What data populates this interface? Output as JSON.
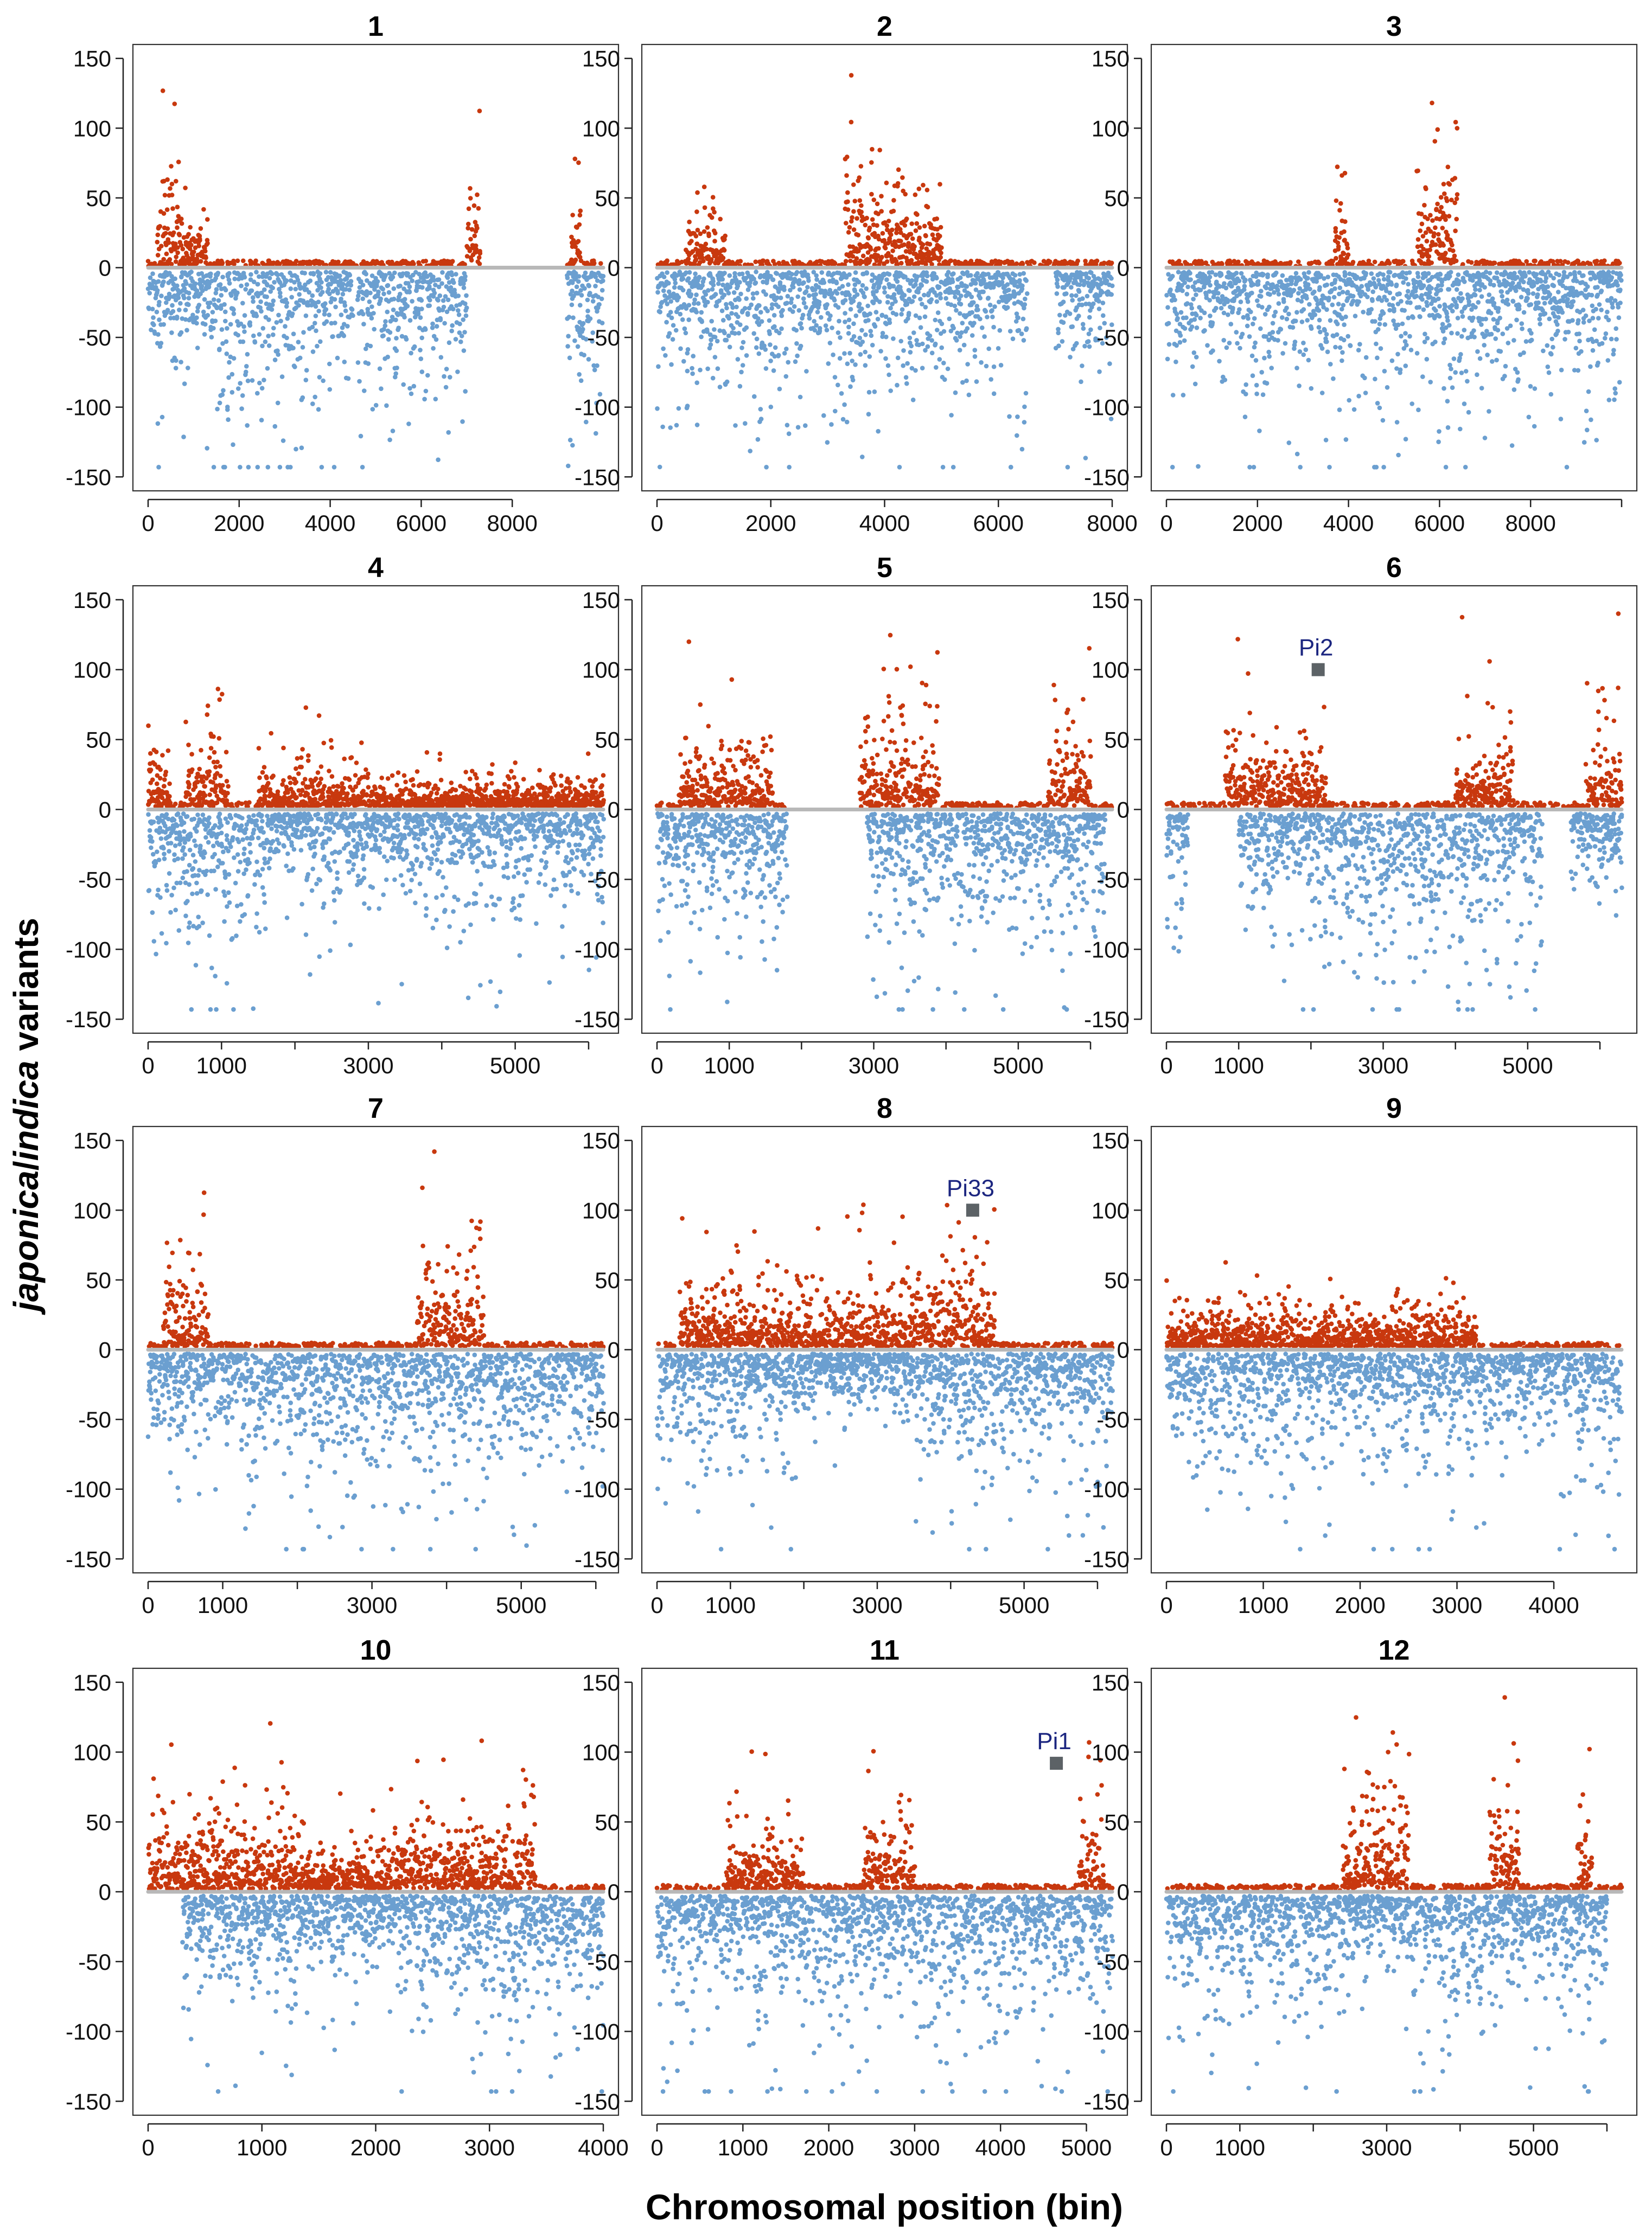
{
  "figure": {
    "ylabel_italic_1": "japonica",
    "ylabel_slash": "/",
    "ylabel_italic_2": "indica",
    "ylabel_rest": " variants",
    "xlabel": "Chromosomal position (bin)"
  },
  "colors": {
    "japonica": "#c8380e",
    "indica": "#6b9fd0",
    "zero_band": "#b8b8b8",
    "marker": "#5c6266",
    "marker_text": "#1c2680",
    "axis": "#222222",
    "frame": "#333333"
  },
  "chart_data": [
    {
      "type": "scatter",
      "title": "1",
      "xlim": [
        0,
        10000
      ],
      "ylim": [
        -160,
        160
      ],
      "xticks": [
        0,
        2000,
        4000,
        6000,
        8000
      ],
      "yticks": [
        150,
        100,
        50,
        0,
        -50,
        -100,
        -150
      ],
      "extra_minor_xticks": [],
      "pos_clusters": [
        [
          200,
          700,
          60
        ],
        [
          700,
          1300,
          20
        ],
        [
          7000,
          7300,
          50
        ],
        [
          9300,
          9500,
          40
        ]
      ],
      "neg_clusters": [
        [
          0,
          1400,
          40
        ],
        [
          1400,
          3900,
          65
        ],
        [
          3900,
          4500,
          45
        ],
        [
          4600,
          4900,
          55
        ],
        [
          4900,
          7000,
          50
        ],
        [
          9200,
          10000,
          45
        ]
      ],
      "gaps": [
        [
          7300,
          9200
        ]
      ],
      "annotation": null
    },
    {
      "type": "scatter",
      "title": "2",
      "xlim": [
        0,
        8000
      ],
      "ylim": [
        -160,
        160
      ],
      "xticks": [
        0,
        2000,
        4000,
        6000,
        8000
      ],
      "yticks": [
        150,
        100,
        50,
        0,
        -50,
        -100,
        -150
      ],
      "extra_minor_xticks": [],
      "pos_clusters": [
        [
          500,
          1200,
          30
        ],
        [
          3300,
          3900,
          50
        ],
        [
          3900,
          5000,
          35
        ]
      ],
      "neg_clusters": [
        [
          0,
          1300,
          45
        ],
        [
          1300,
          3400,
          55
        ],
        [
          3400,
          5600,
          50
        ],
        [
          5600,
          6500,
          45
        ],
        [
          7000,
          8000,
          40
        ]
      ],
      "gaps": [],
      "annotation": null
    },
    {
      "type": "scatter",
      "title": "3",
      "xlim": [
        0,
        10000
      ],
      "ylim": [
        -160,
        160
      ],
      "xticks": [
        0,
        2000,
        4000,
        6000,
        8000
      ],
      "yticks": [
        150,
        100,
        50,
        0,
        -50,
        -100,
        -150
      ],
      "extra_minor_xticks": [
        10000
      ],
      "pos_clusters": [
        [
          3700,
          4000,
          40
        ],
        [
          5500,
          6400,
          55
        ]
      ],
      "neg_clusters": [
        [
          0,
          3500,
          45
        ],
        [
          3500,
          4300,
          50
        ],
        [
          4300,
          7300,
          50
        ],
        [
          7300,
          10000,
          45
        ]
      ],
      "gaps": [],
      "annotation": null
    },
    {
      "type": "scatter",
      "title": "4",
      "xlim": [
        0,
        6200
      ],
      "ylim": [
        -160,
        160
      ],
      "xticks": [
        0,
        1000,
        3000,
        5000
      ],
      "yticks": [
        150,
        100,
        50,
        0,
        -50,
        -100,
        -150
      ],
      "extra_minor_xticks": [
        2000,
        4000,
        6000
      ],
      "pos_clusters": [
        [
          0,
          300,
          30
        ],
        [
          500,
          1100,
          35
        ],
        [
          1500,
          3000,
          20
        ],
        [
          3000,
          6200,
          12
        ]
      ],
      "neg_clusters": [
        [
          0,
          1600,
          55
        ],
        [
          1600,
          2200,
          25
        ],
        [
          2200,
          6200,
          40
        ]
      ],
      "gaps": [],
      "annotation": null
    },
    {
      "type": "scatter",
      "title": "5",
      "xlim": [
        0,
        6300
      ],
      "ylim": [
        -160,
        160
      ],
      "xticks": [
        0,
        1000,
        3000,
        5000
      ],
      "yticks": [
        150,
        100,
        50,
        0,
        -50,
        -100,
        -150
      ],
      "extra_minor_xticks": [
        2000,
        4000,
        6000
      ],
      "pos_clusters": [
        [
          300,
          1600,
          30
        ],
        [
          2800,
          3900,
          40
        ],
        [
          5400,
          6000,
          40
        ]
      ],
      "neg_clusters": [
        [
          0,
          1800,
          45
        ],
        [
          2900,
          6200,
          50
        ]
      ],
      "gaps": [
        [
          1800,
          2800
        ]
      ],
      "annotation": null
    },
    {
      "type": "scatter",
      "title": "6",
      "xlim": [
        0,
        6300
      ],
      "ylim": [
        -160,
        160
      ],
      "xticks": [
        0,
        1000,
        3000,
        5000
      ],
      "yticks": [
        150,
        100,
        50,
        0,
        -50,
        -100,
        -150
      ],
      "extra_minor_xticks": [
        2000,
        4000,
        6000
      ],
      "pos_clusters": [
        [
          800,
          1300,
          45
        ],
        [
          1300,
          2200,
          30
        ],
        [
          4000,
          4800,
          35
        ],
        [
          5800,
          6300,
          35
        ]
      ],
      "neg_clusters": [
        [
          0,
          300,
          40
        ],
        [
          1000,
          2200,
          45
        ],
        [
          2200,
          5200,
          60
        ],
        [
          5600,
          6300,
          30
        ]
      ],
      "gaps": [],
      "annotation": {
        "label": "Pi2",
        "x": 2100,
        "y": 100
      }
    },
    {
      "type": "scatter",
      "title": "7",
      "xlim": [
        0,
        6100
      ],
      "ylim": [
        -160,
        160
      ],
      "xticks": [
        0,
        1000,
        3000,
        5000
      ],
      "yticks": [
        150,
        100,
        50,
        0,
        -50,
        -100,
        -150
      ],
      "extra_minor_xticks": [
        2000,
        4000,
        6000
      ],
      "pos_clusters": [
        [
          200,
          800,
          35
        ],
        [
          3600,
          4500,
          45
        ]
      ],
      "neg_clusters": [
        [
          0,
          1200,
          40
        ],
        [
          1200,
          3600,
          55
        ],
        [
          3600,
          6100,
          50
        ]
      ],
      "gaps": [],
      "annotation": null
    },
    {
      "type": "scatter",
      "title": "8",
      "xlim": [
        0,
        6200
      ],
      "ylim": [
        -160,
        160
      ],
      "xticks": [
        0,
        1000,
        3000,
        5000
      ],
      "yticks": [
        150,
        100,
        50,
        0,
        -50,
        -100,
        -150
      ],
      "extra_minor_xticks": [
        2000,
        4000,
        6000
      ],
      "pos_clusters": [
        [
          300,
          1400,
          30
        ],
        [
          1400,
          3500,
          30
        ],
        [
          3500,
          4600,
          40
        ]
      ],
      "neg_clusters": [
        [
          0,
          1900,
          45
        ],
        [
          1900,
          3500,
          25
        ],
        [
          3500,
          5200,
          50
        ],
        [
          5200,
          6200,
          45
        ]
      ],
      "gaps": [],
      "annotation": {
        "label": "Pi33",
        "x": 4300,
        "y": 100
      }
    },
    {
      "type": "scatter",
      "title": "9",
      "xlim": [
        0,
        4700
      ],
      "ylim": [
        -160,
        160
      ],
      "xticks": [
        0,
        1000,
        2000,
        3000,
        4000
      ],
      "yticks": [
        150,
        100,
        50,
        0,
        -50,
        -100,
        -150
      ],
      "extra_minor_xticks": [],
      "pos_clusters": [
        [
          0,
          3200,
          20
        ],
        [
          1900,
          2200,
          45
        ]
      ],
      "neg_clusters": [
        [
          0,
          2000,
          45
        ],
        [
          2000,
          3000,
          50
        ],
        [
          3000,
          4700,
          40
        ]
      ],
      "gaps": [],
      "annotation": null
    },
    {
      "type": "scatter",
      "title": "10",
      "xlim": [
        0,
        4000
      ],
      "ylim": [
        -160,
        160
      ],
      "xticks": [
        0,
        1000,
        2000,
        3000,
        4000
      ],
      "yticks": [
        150,
        100,
        50,
        0,
        -50,
        -100,
        -150
      ],
      "extra_minor_xticks": [],
      "pos_clusters": [
        [
          0,
          1300,
          35
        ],
        [
          1300,
          2100,
          20
        ],
        [
          2100,
          3400,
          35
        ]
      ],
      "neg_clusters": [
        [
          300,
          1300,
          45
        ],
        [
          1300,
          2200,
          30
        ],
        [
          2200,
          3300,
          50
        ],
        [
          3300,
          4000,
          50
        ]
      ],
      "gaps": [],
      "annotation": null
    },
    {
      "type": "scatter",
      "title": "11",
      "xlim": [
        0,
        5300
      ],
      "ylim": [
        -160,
        160
      ],
      "xticks": [
        0,
        1000,
        2000,
        3000,
        4000,
        5000
      ],
      "yticks": [
        150,
        100,
        50,
        0,
        -50,
        -100,
        -150
      ],
      "extra_minor_xticks": [],
      "pos_clusters": [
        [
          800,
          1700,
          30
        ],
        [
          2400,
          3000,
          30
        ],
        [
          4900,
          5200,
          45
        ]
      ],
      "neg_clusters": [
        [
          0,
          5300,
          50
        ]
      ],
      "gaps": [],
      "annotation": {
        "label": "Pi1",
        "x": 4650,
        "y": 92
      }
    },
    {
      "type": "scatter",
      "title": "12",
      "xlim": [
        0,
        6200
      ],
      "ylim": [
        -160,
        160
      ],
      "xticks": [
        0,
        1000,
        3000,
        5000
      ],
      "yticks": [
        150,
        100,
        50,
        0,
        -50,
        -100,
        -150
      ],
      "extra_minor_xticks": [
        2000,
        4000,
        6000
      ],
      "pos_clusters": [
        [
          2400,
          3300,
          45
        ],
        [
          4400,
          4800,
          45
        ],
        [
          5600,
          5800,
          40
        ]
      ],
      "neg_clusters": [
        [
          0,
          2400,
          45
        ],
        [
          2400,
          3200,
          30
        ],
        [
          3200,
          4400,
          50
        ],
        [
          4400,
          6000,
          45
        ]
      ],
      "gaps": [],
      "annotation": null
    }
  ]
}
